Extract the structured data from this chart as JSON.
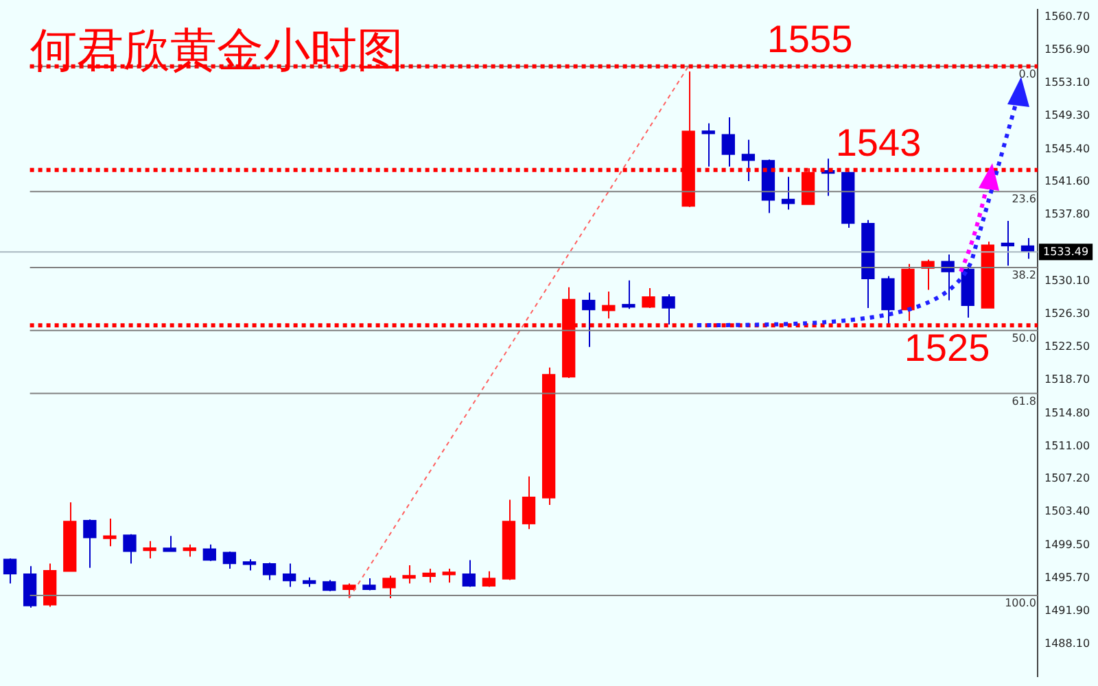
{
  "chart_data": {
    "type": "candlestick",
    "title": "何君欣黄金小时图",
    "categories": [
      null,
      null,
      null,
      null,
      null,
      null,
      null,
      null,
      null,
      null,
      null,
      null,
      null,
      null,
      null,
      null,
      null,
      null,
      null,
      null,
      null,
      null,
      null,
      null,
      null,
      null,
      null,
      null,
      null,
      null,
      null,
      null,
      null,
      null,
      null,
      null,
      null,
      null,
      null,
      null,
      null,
      null,
      null,
      null,
      null,
      null,
      null,
      null,
      null,
      null,
      null,
      null
    ],
    "ohlc": [
      [
        1497.9,
        1498.0,
        1495.1,
        1496.2
      ],
      [
        1496.2,
        1497.1,
        1492.3,
        1492.5
      ],
      [
        1492.6,
        1497.4,
        1492.4,
        1496.6
      ],
      [
        1496.5,
        1504.5,
        1496.5,
        1502.3
      ],
      [
        1502.4,
        1502.5,
        1496.9,
        1500.4
      ],
      [
        1500.3,
        1502.6,
        1499.4,
        1500.5
      ],
      [
        1500.7,
        1500.8,
        1497.4,
        1498.8
      ],
      [
        1498.9,
        1500.0,
        1498.0,
        1499.2
      ],
      [
        1499.2,
        1500.6,
        1498.8,
        1498.8
      ],
      [
        1498.9,
        1499.6,
        1498.2,
        1499.2
      ],
      [
        1499.1,
        1499.6,
        1497.7,
        1497.8
      ],
      [
        1498.7,
        1498.8,
        1496.8,
        1497.4
      ],
      [
        1497.5,
        1497.9,
        1496.6,
        1497.3
      ],
      [
        1497.4,
        1497.5,
        1495.5,
        1496.1
      ],
      [
        1496.2,
        1497.4,
        1494.7,
        1495.4
      ],
      [
        1495.4,
        1495.8,
        1494.7,
        1495.1
      ],
      [
        1495.3,
        1495.5,
        1494.2,
        1494.3
      ],
      [
        1494.4,
        1495.1,
        1493.4,
        1494.9
      ],
      [
        1494.9,
        1495.7,
        1494.3,
        1494.4
      ],
      [
        1494.6,
        1496.0,
        1493.4,
        1495.7
      ],
      [
        1495.7,
        1497.2,
        1495.1,
        1496.0
      ],
      [
        1495.9,
        1496.8,
        1495.2,
        1496.3
      ],
      [
        1496.1,
        1496.8,
        1495.2,
        1496.4
      ],
      [
        1496.2,
        1497.8,
        1494.7,
        1494.8
      ],
      [
        1494.8,
        1496.5,
        1494.7,
        1495.7
      ],
      [
        1495.6,
        1504.8,
        1495.5,
        1502.3
      ],
      [
        1502.0,
        1507.5,
        1501.4,
        1505.1
      ],
      [
        1505.0,
        1520.1,
        1504.2,
        1519.3
      ],
      [
        1519.0,
        1529.4,
        1518.9,
        1528.0
      ],
      [
        1527.9,
        1528.8,
        1522.5,
        1526.8
      ],
      [
        1526.7,
        1528.9,
        1525.8,
        1527.3
      ],
      [
        1527.3,
        1530.2,
        1526.9,
        1527.1
      ],
      [
        1527.1,
        1529.3,
        1527.0,
        1528.3
      ],
      [
        1528.3,
        1528.6,
        1525.1,
        1527.0
      ],
      [
        1538.8,
        1554.4,
        1538.7,
        1547.5
      ],
      [
        1547.4,
        1548.4,
        1543.4,
        1547.2
      ],
      [
        1547.1,
        1549.1,
        1543.4,
        1544.8
      ],
      [
        1544.8,
        1546.5,
        1541.7,
        1544.1
      ],
      [
        1544.1,
        1544.2,
        1538.0,
        1539.5
      ],
      [
        1539.6,
        1542.2,
        1538.4,
        1539.1
      ],
      [
        1539.0,
        1543.2,
        1539.0,
        1542.7
      ],
      [
        1542.8,
        1544.3,
        1540.0,
        1542.6
      ],
      [
        1542.7,
        1542.8,
        1536.3,
        1536.8
      ],
      [
        1536.8,
        1537.2,
        1527.0,
        1530.4
      ],
      [
        1530.4,
        1530.7,
        1525.0,
        1526.8
      ],
      [
        1526.8,
        1532.1,
        1525.5,
        1531.5
      ],
      [
        1531.6,
        1532.6,
        1529.1,
        1532.4
      ],
      [
        1532.4,
        1533.2,
        1527.9,
        1531.2
      ],
      [
        1531.5,
        1532.0,
        1525.9,
        1527.3
      ],
      [
        1527.0,
        1534.7,
        1527.0,
        1534.3
      ],
      [
        1534.3,
        1537.1,
        1531.9,
        1534.2
      ],
      [
        1534.2,
        1535.1,
        1532.7,
        1533.49
      ]
    ],
    "colors": [
      "#0000cc",
      "#0000cc",
      "#ff0000",
      "#ff0000",
      "#0000cc",
      "#ff0000",
      "#0000cc",
      "#ff0000",
      "#0000cc",
      "#ff0000",
      "#0000cc",
      "#0000cc",
      "#0000cc",
      "#0000cc",
      "#0000cc",
      "#0000cc",
      "#0000cc",
      "#ff0000",
      "#0000cc",
      "#ff0000",
      "#ff0000",
      "#ff0000",
      "#ff0000",
      "#0000cc",
      "#ff0000",
      "#ff0000",
      "#ff0000",
      "#ff0000",
      "#ff0000",
      "#0000cc",
      "#ff0000",
      "#0000cc",
      "#ff0000",
      "#0000cc",
      "#ff0000",
      "#0000cc",
      "#0000cc",
      "#0000cc",
      "#0000cc",
      "#0000cc",
      "#ff0000",
      "#0000cc",
      "#0000cc",
      "#0000cc",
      "#0000cc",
      "#ff0000",
      "#ff0000",
      "#0000cc",
      "#0000cc",
      "#ff0000",
      "#0000cc",
      "#0000cc"
    ],
    "ylim": [
      1484.3,
      1561.6
    ],
    "yticks": [
      {
        "value": 1560.7,
        "label": "1560.70"
      },
      {
        "value": 1556.9,
        "label": "1556.90"
      },
      {
        "value": 1553.1,
        "label": "1553.10"
      },
      {
        "value": 1549.3,
        "label": "1549.30"
      },
      {
        "value": 1545.4,
        "label": "1545.40"
      },
      {
        "value": 1541.6,
        "label": "1541.60"
      },
      {
        "value": 1537.8,
        "label": "1537.80"
      },
      {
        "value": 1530.1,
        "label": "1530.10"
      },
      {
        "value": 1526.3,
        "label": "1526.30"
      },
      {
        "value": 1522.5,
        "label": "1522.50"
      },
      {
        "value": 1518.7,
        "label": "1518.70"
      },
      {
        "value": 1514.8,
        "label": "1514.80"
      },
      {
        "value": 1511.0,
        "label": "1511.00"
      },
      {
        "value": 1507.2,
        "label": "1507.20"
      },
      {
        "value": 1503.4,
        "label": "1503.40"
      },
      {
        "value": 1499.5,
        "label": "1499.50"
      },
      {
        "value": 1495.7,
        "label": "1495.70"
      },
      {
        "value": 1491.9,
        "label": "1491.90"
      },
      {
        "value": 1488.1,
        "label": "1488.10"
      }
    ],
    "series": [
      {
        "type": "line",
        "color": "#ff6060",
        "line_style": "dotted",
        "marker": "none",
        "values": [
          null,
          null,
          null,
          null,
          null,
          null,
          null,
          null,
          null,
          null,
          null,
          null,
          null,
          null,
          null,
          null,
          null,
          1493.4,
          null,
          null,
          null,
          null,
          null,
          null,
          null,
          null,
          null,
          null,
          null,
          null,
          null,
          null,
          null,
          null,
          1555,
          null,
          null,
          null,
          null,
          null,
          null,
          null,
          null,
          null,
          null,
          null,
          null,
          null,
          null,
          null,
          null,
          null
        ]
      }
    ],
    "annotations": [
      {
        "text": "0.0",
        "y": 1555
      },
      {
        "text": "23.6",
        "y": 1540.5
      },
      {
        "text": "38.2",
        "y": 1531.7
      },
      {
        "text": "50.0",
        "y": 1524.4
      },
      {
        "text": "61.8",
        "y": 1517.1
      },
      {
        "text": "100.0",
        "y": 1493.7
      }
    ],
    "ref_lines": [
      {
        "axis": "y",
        "value": 1555,
        "color": "#808080",
        "line_style": "solid"
      },
      {
        "axis": "y",
        "value": 1540.5,
        "color": "#808080",
        "line_style": "solid"
      },
      {
        "axis": "y",
        "value": 1531.7,
        "color": "#808080",
        "line_style": "solid"
      },
      {
        "axis": "y",
        "value": 1524.4,
        "color": "#808080",
        "line_style": "solid"
      },
      {
        "axis": "y",
        "value": 1517.1,
        "color": "#808080",
        "line_style": "solid"
      },
      {
        "axis": "y",
        "value": 1493.7,
        "color": "#808080",
        "line_style": "solid"
      },
      {
        "axis": "y",
        "value": 1533.49,
        "label": "1533.49",
        "color": "#a8b8c0"
      },
      {
        "axis": "y",
        "value": 1555,
        "label": "1555",
        "color": "#ff0000",
        "line_style": "dotted"
      },
      {
        "axis": "y",
        "value": 1543,
        "label": "1543",
        "color": "#ff0000",
        "line_style": "dotted"
      },
      {
        "axis": "y",
        "value": 1525,
        "label": "1525",
        "color": "#ff0000",
        "line_style": "dotted"
      }
    ],
    "grid": false,
    "legend": false
  }
}
